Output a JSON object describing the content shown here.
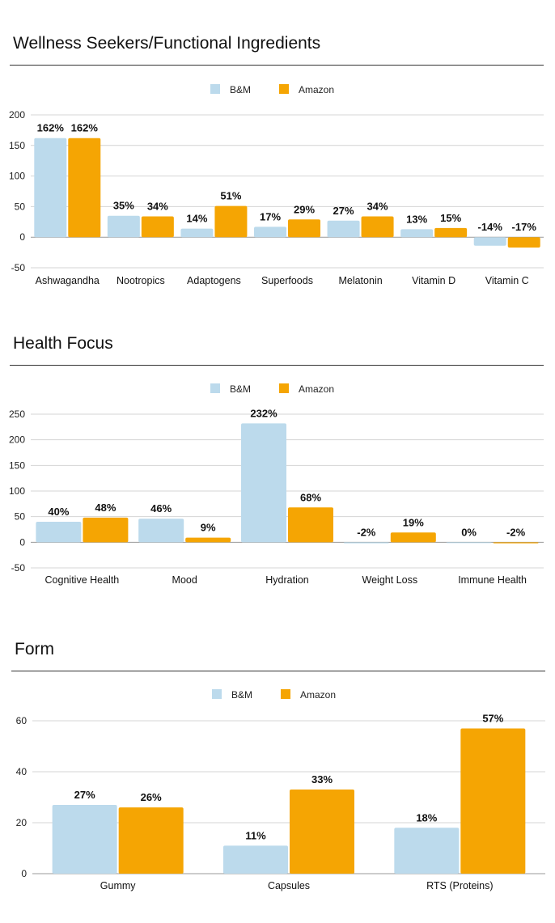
{
  "colors": {
    "bm": "#bcdaec",
    "amazon": "#f5a503",
    "grid": "#d4d4d4",
    "axis": "#999999"
  },
  "chart_data": [
    {
      "type": "bar",
      "title": "Wellness Seekers/Functional Ingredients",
      "categories": [
        "Ashwagandha",
        "Nootropics",
        "Adaptogens",
        "Superfoods",
        "Melatonin",
        "Vitamin D",
        "Vitamin C"
      ],
      "series": [
        {
          "name": "B&M",
          "values": [
            162,
            35,
            14,
            17,
            27,
            13,
            -14
          ],
          "labels": [
            "162%",
            "35%",
            "14%",
            "17%",
            "27%",
            "13%",
            "-14%"
          ]
        },
        {
          "name": "Amazon",
          "values": [
            162,
            34,
            51,
            29,
            34,
            15,
            -17
          ],
          "labels": [
            "162%",
            "34%",
            "51%",
            "29%",
            "34%",
            "15%",
            "-17%"
          ]
        }
      ],
      "yticks": [
        "200",
        "150",
        "100",
        "50",
        "0",
        "-50"
      ],
      "ylim": [
        -50,
        200
      ],
      "grid": true,
      "legend": "top-center"
    },
    {
      "type": "bar",
      "title": "Health Focus",
      "categories": [
        "Cognitive Health",
        "Mood",
        "Hydration",
        "Weight Loss",
        "Immune Health"
      ],
      "series": [
        {
          "name": "B&M",
          "values": [
            40,
            46,
            232,
            -2,
            0
          ],
          "labels": [
            "40%",
            "46%",
            "232%",
            "-2%",
            "0%"
          ]
        },
        {
          "name": "Amazon",
          "values": [
            48,
            9,
            68,
            19,
            -2
          ],
          "labels": [
            "48%",
            "9%",
            "68%",
            "19%",
            "-2%"
          ]
        }
      ],
      "yticks": [
        "250",
        "200",
        "150",
        "100",
        "50",
        "0",
        "-50"
      ],
      "ylim": [
        -50,
        250
      ],
      "grid": true,
      "legend": "top-center"
    },
    {
      "type": "bar",
      "title": "Form",
      "categories": [
        "Gummy",
        "Capsules",
        "RTS (Proteins)"
      ],
      "series": [
        {
          "name": "B&M",
          "values": [
            27,
            11,
            18
          ],
          "labels": [
            "27%",
            "11%",
            "18%"
          ]
        },
        {
          "name": "Amazon",
          "values": [
            26,
            33,
            57
          ],
          "labels": [
            "26%",
            "33%",
            "57%"
          ]
        }
      ],
      "yticks": [
        "60",
        "40",
        "20",
        "0"
      ],
      "ylim": [
        0,
        60
      ],
      "grid": true,
      "legend": "top-center"
    }
  ]
}
